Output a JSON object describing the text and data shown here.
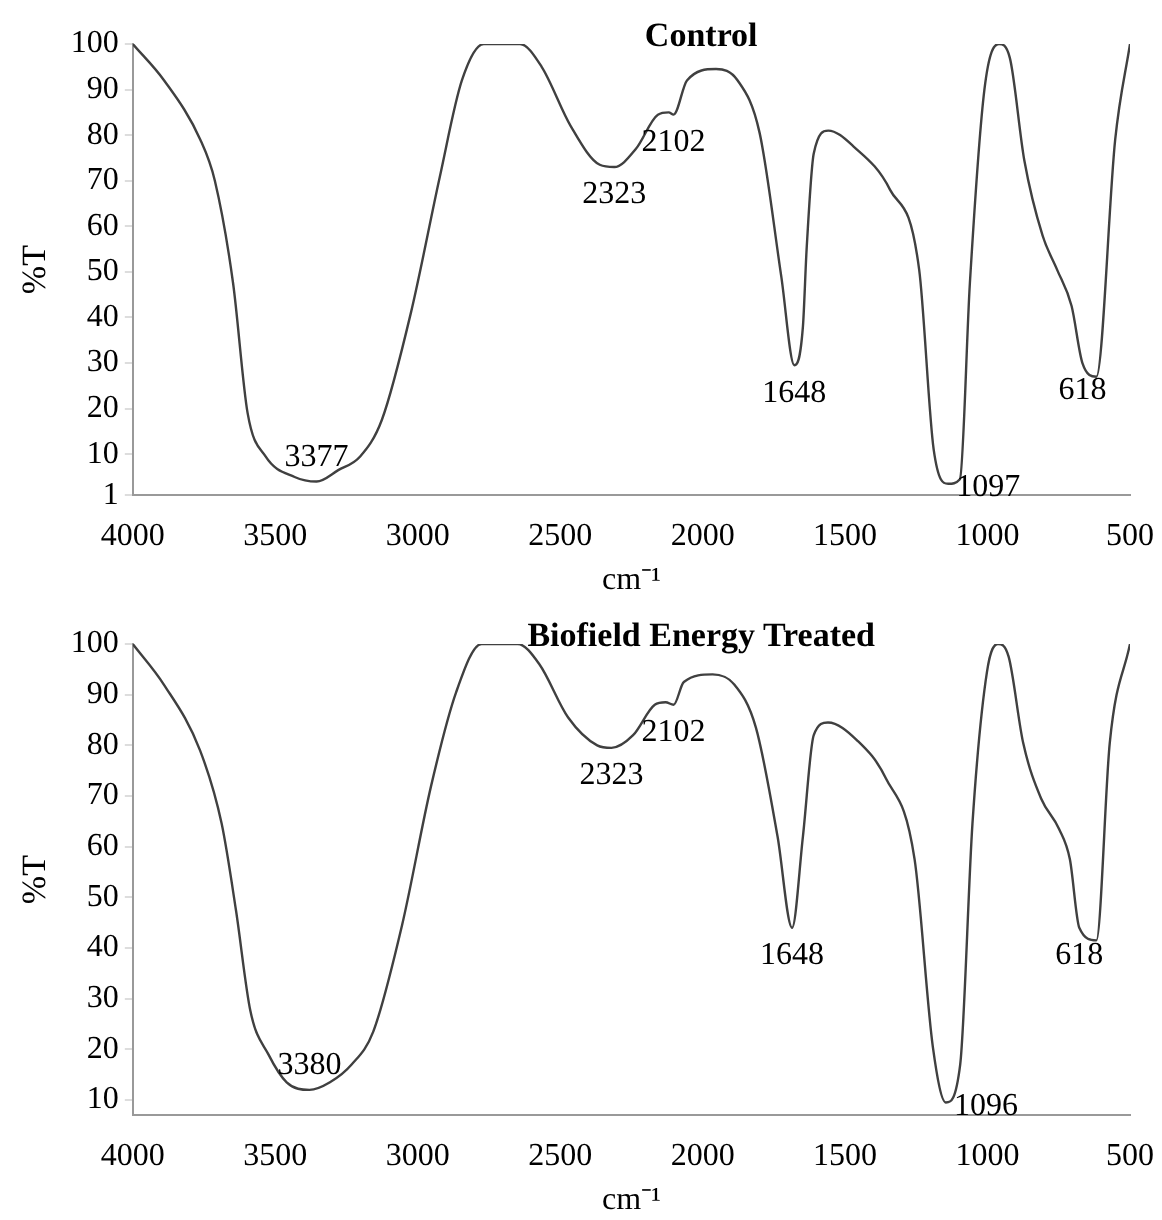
{
  "chart_data": [
    {
      "type": "line",
      "title": "Control",
      "xlabel": "cm⁻¹",
      "ylabel": "%T",
      "x": [
        4000,
        3890,
        3763,
        3712,
        3648,
        3597,
        3534,
        3432,
        3355,
        3279,
        3202,
        3126,
        3024,
        2922,
        2845,
        2768,
        2641,
        2565,
        2463,
        2361,
        2310,
        2234,
        2157,
        2119,
        2102,
        2055,
        1953,
        1877,
        1800,
        1724,
        1678,
        1648,
        1635,
        1610,
        1559,
        1470,
        1342,
        1240,
        1189,
        1138,
        1097,
        1062,
        1011,
        960,
        922,
        871,
        807,
        756,
        705,
        667,
        618,
        552,
        500
      ],
      "series": [
        {
          "color": "#404040",
          "values": [
            100,
            92,
            79,
            70,
            47.5,
            19,
            9.5,
            5,
            4,
            6.5,
            9.5,
            17.5,
            41,
            71,
            92,
            100,
            100,
            95,
            82,
            73.5,
            73,
            77,
            84.5,
            85,
            84.5,
            92,
            94.5,
            92,
            80.5,
            49,
            29.5,
            38,
            55,
            76,
            81,
            77.5,
            68,
            50.5,
            11,
            3.5,
            4.5,
            47.5,
            90,
            100,
            97,
            74.5,
            58,
            50.5,
            42.5,
            30,
            27,
            79,
            100
          ]
        }
      ],
      "xlim": [
        4000,
        500
      ],
      "xticks": [
        4000,
        3500,
        3000,
        2500,
        2000,
        1500,
        1000,
        500
      ],
      "ylim": [
        1,
        100
      ],
      "yticks": [
        1,
        10,
        20,
        30,
        40,
        50,
        60,
        70,
        80,
        90,
        100
      ],
      "grid": false,
      "marker": "none",
      "line_style": "solid",
      "annotations": [
        {
          "text": "3377",
          "x": 3355,
          "y": 4
        },
        {
          "text": "2323",
          "x": 2310,
          "y": 73
        },
        {
          "text": "2102",
          "x": 2102,
          "y": 84.5
        },
        {
          "text": "1648",
          "x": 1678,
          "y": 29.5
        },
        {
          "text": "1097",
          "x": 1138,
          "y": 3.5
        },
        {
          "text": "618",
          "x": 667,
          "y": 30
        }
      ]
    },
    {
      "type": "line",
      "title": "Biofield Energy Treated",
      "xlabel": "cm⁻¹",
      "ylabel": "%T",
      "x": [
        4000,
        3891,
        3764,
        3688,
        3638,
        3587,
        3524,
        3460,
        3380,
        3308,
        3232,
        3156,
        3055,
        2953,
        2865,
        2776,
        2649,
        2573,
        2472,
        2370,
        2320,
        2244,
        2168,
        2130,
        2102,
        2066,
        1965,
        1889,
        1813,
        1737,
        1686,
        1648,
        1610,
        1560,
        1458,
        1357,
        1256,
        1192,
        1146,
        1096,
        1053,
        1002,
        964,
        926,
        875,
        812,
        749,
        711,
        678,
        618,
        571,
        500
      ],
      "series": [
        {
          "color": "#404040",
          "values": [
            100,
            92,
            79,
            64.5,
            47.5,
            27.5,
            19,
            13.5,
            12,
            13.5,
            17,
            23.5,
            44.5,
            72,
            90.5,
            100,
            100,
            96,
            85.5,
            80,
            79.5,
            82,
            88,
            88.5,
            88,
            92.5,
            94,
            92,
            83.5,
            62,
            44,
            62,
            82,
            84.5,
            81,
            73.5,
            57.5,
            20.5,
            9.5,
            17,
            64.5,
            94.5,
            100,
            97.5,
            80.5,
            69.5,
            63.5,
            57.5,
            44,
            41.5,
            80.5,
            100
          ]
        }
      ],
      "xlim": [
        4000,
        500
      ],
      "xticks": [
        4000,
        3500,
        3000,
        2500,
        2000,
        1500,
        1000,
        500
      ],
      "ylim": [
        7,
        100
      ],
      "yticks": [
        10,
        20,
        30,
        40,
        50,
        60,
        70,
        80,
        90,
        100
      ],
      "grid": false,
      "marker": "none",
      "line_style": "solid",
      "annotations": [
        {
          "text": "3380",
          "x": 3380,
          "y": 12
        },
        {
          "text": "2323",
          "x": 2320,
          "y": 79.5
        },
        {
          "text": "2102",
          "x": 2102,
          "y": 88
        },
        {
          "text": "1648",
          "x": 1686,
          "y": 44
        },
        {
          "text": "1096",
          "x": 1146,
          "y": 9.5
        },
        {
          "text": "618",
          "x": 678,
          "y": 44
        }
      ]
    }
  ]
}
